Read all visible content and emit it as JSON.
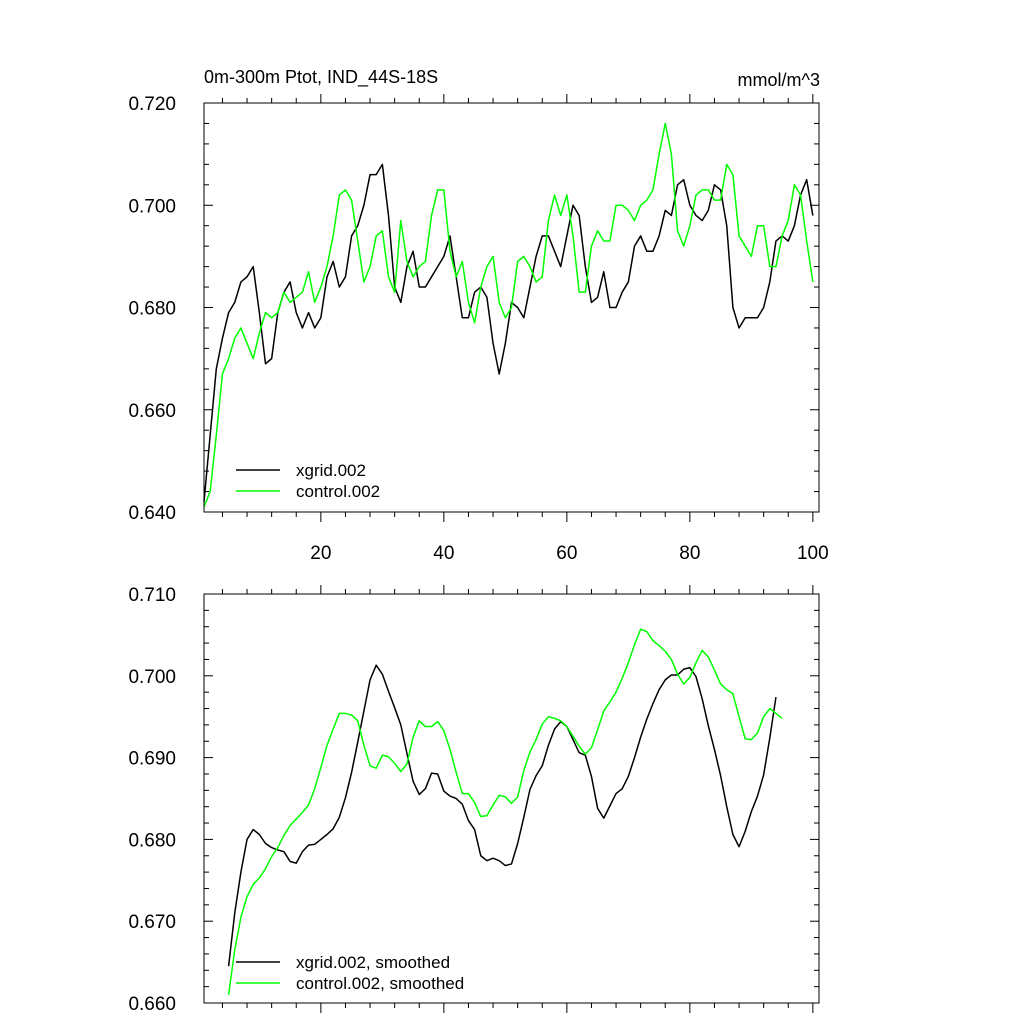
{
  "chart_data": [
    {
      "type": "line",
      "title": "0m-300m Ptot, IND_44S-18S",
      "units": "mmol/m^3",
      "xlim": [
        1,
        101
      ],
      "ylim": [
        0.64,
        0.72
      ],
      "xticks": [
        20,
        40,
        60,
        80,
        100
      ],
      "xtick_labels": [
        "20",
        "40",
        "60",
        "80",
        "100"
      ],
      "yticks": [
        0.64,
        0.66,
        0.68,
        0.7,
        0.72
      ],
      "ytick_labels": [
        "0.640",
        "0.660",
        "0.680",
        "0.700",
        "0.720"
      ],
      "legend_position": "bottom-left",
      "series": [
        {
          "name": "xgrid.002",
          "color": "#000000",
          "values": [
            0.642,
            0.655,
            0.668,
            0.674,
            0.679,
            0.681,
            0.685,
            0.686,
            0.688,
            0.679,
            0.669,
            0.67,
            0.679,
            0.683,
            0.685,
            0.679,
            0.676,
            0.679,
            0.676,
            0.678,
            0.686,
            0.689,
            0.684,
            0.686,
            0.694,
            0.696,
            0.7,
            0.706,
            0.706,
            0.708,
            0.698,
            0.684,
            0.681,
            0.688,
            0.691,
            0.684,
            0.684,
            0.686,
            0.688,
            0.69,
            0.694,
            0.686,
            0.678,
            0.678,
            0.683,
            0.684,
            0.682,
            0.673,
            0.667,
            0.673,
            0.681,
            0.68,
            0.678,
            0.684,
            0.69,
            0.694,
            0.694,
            0.691,
            0.688,
            0.694,
            0.7,
            0.698,
            0.688,
            0.681,
            0.682,
            0.687,
            0.68,
            0.68,
            0.683,
            0.685,
            0.692,
            0.694,
            0.691,
            0.691,
            0.694,
            0.699,
            0.698,
            0.704,
            0.705,
            0.7,
            0.698,
            0.697,
            0.699,
            0.704,
            0.703,
            0.696,
            0.68,
            0.676,
            0.678,
            0.678,
            0.678,
            0.68,
            0.685,
            0.693,
            0.694,
            0.693,
            0.696,
            0.702,
            0.705,
            0.698
          ]
        },
        {
          "name": "control.002",
          "color": "#00ff00",
          "values": [
            0.641,
            0.644,
            0.655,
            0.667,
            0.67,
            0.674,
            0.676,
            0.673,
            0.67,
            0.675,
            0.679,
            0.678,
            0.679,
            0.683,
            0.681,
            0.682,
            0.683,
            0.687,
            0.681,
            0.684,
            0.688,
            0.694,
            0.702,
            0.703,
            0.701,
            0.693,
            0.685,
            0.688,
            0.694,
            0.695,
            0.686,
            0.683,
            0.697,
            0.689,
            0.686,
            0.688,
            0.689,
            0.698,
            0.703,
            0.703,
            0.691,
            0.686,
            0.689,
            0.681,
            0.677,
            0.684,
            0.688,
            0.69,
            0.681,
            0.678,
            0.68,
            0.689,
            0.69,
            0.688,
            0.685,
            0.686,
            0.697,
            0.702,
            0.698,
            0.702,
            0.694,
            0.683,
            0.683,
            0.692,
            0.695,
            0.693,
            0.693,
            0.7,
            0.7,
            0.699,
            0.697,
            0.7,
            0.701,
            0.703,
            0.71,
            0.716,
            0.71,
            0.695,
            0.692,
            0.696,
            0.702,
            0.703,
            0.703,
            0.701,
            0.701,
            0.708,
            0.706,
            0.694,
            0.692,
            0.69,
            0.696,
            0.696,
            0.688,
            0.688,
            0.694,
            0.697,
            0.704,
            0.702,
            0.693,
            0.685
          ]
        }
      ]
    },
    {
      "type": "line",
      "xlim": [
        1,
        101
      ],
      "ylim": [
        0.66,
        0.71
      ],
      "xticks": [
        20,
        40,
        60,
        80,
        100
      ],
      "yticks": [
        0.66,
        0.67,
        0.68,
        0.69,
        0.7,
        0.71
      ],
      "ytick_labels": [
        "0.660",
        "0.670",
        "0.680",
        "0.690",
        "0.700",
        "0.710"
      ],
      "legend_position": "bottom-left",
      "series": [
        {
          "name": "xgrid.002, smoothed",
          "color": "#000000",
          "x_start": 5,
          "values": [
            0.6645,
            0.671,
            0.676,
            0.68,
            0.6812,
            0.6806,
            0.6795,
            0.679,
            0.6787,
            0.6785,
            0.6773,
            0.6771,
            0.6785,
            0.6793,
            0.6794,
            0.68,
            0.6806,
            0.6813,
            0.6827,
            0.6851,
            0.6882,
            0.6919,
            0.6957,
            0.6995,
            0.7013,
            0.7002,
            0.6981,
            0.6961,
            0.694,
            0.6905,
            0.6871,
            0.6855,
            0.6862,
            0.6881,
            0.688,
            0.6859,
            0.6853,
            0.685,
            0.6843,
            0.6823,
            0.6812,
            0.678,
            0.6774,
            0.6777,
            0.6774,
            0.6768,
            0.677,
            0.6795,
            0.6827,
            0.6861,
            0.6878,
            0.689,
            0.6915,
            0.6935,
            0.6944,
            0.6938,
            0.6922,
            0.6906,
            0.6903,
            0.6877,
            0.6838,
            0.6826,
            0.6841,
            0.6856,
            0.6862,
            0.6877,
            0.69,
            0.6925,
            0.6947,
            0.6966,
            0.6983,
            0.6995,
            0.7001,
            0.7001,
            0.7008,
            0.701,
            0.6999,
            0.6972,
            0.6939,
            0.691,
            0.6878,
            0.684,
            0.6806,
            0.6791,
            0.681,
            0.6834,
            0.6853,
            0.6879,
            0.6924,
            0.6974
          ]
        },
        {
          "name": "control.002, smoothed",
          "color": "#00ff00",
          "x_start": 5,
          "values": [
            0.661,
            0.6665,
            0.6705,
            0.673,
            0.6745,
            0.6753,
            0.6764,
            0.6779,
            0.679,
            0.6805,
            0.6817,
            0.6825,
            0.6833,
            0.6842,
            0.6862,
            0.6888,
            0.6915,
            0.6935,
            0.6954,
            0.6954,
            0.6952,
            0.6945,
            0.6915,
            0.689,
            0.6887,
            0.6903,
            0.6901,
            0.6893,
            0.6883,
            0.6892,
            0.6925,
            0.6945,
            0.6938,
            0.6938,
            0.6944,
            0.6933,
            0.691,
            0.6882,
            0.6856,
            0.6856,
            0.6845,
            0.6828,
            0.6829,
            0.6842,
            0.6854,
            0.6852,
            0.6844,
            0.6852,
            0.6884,
            0.6907,
            0.6922,
            0.6941,
            0.695,
            0.6948,
            0.6945,
            0.6938,
            0.6926,
            0.6914,
            0.6904,
            0.6912,
            0.6934,
            0.6957,
            0.6968,
            0.698,
            0.6997,
            0.7016,
            0.7038,
            0.7057,
            0.7054,
            0.7043,
            0.7037,
            0.703,
            0.702,
            0.7002,
            0.699,
            0.6998,
            0.7016,
            0.7031,
            0.7023,
            0.7007,
            0.699,
            0.6983,
            0.6978,
            0.695,
            0.6923,
            0.6922,
            0.693,
            0.695,
            0.696,
            0.6954,
            0.6948
          ]
        }
      ]
    }
  ]
}
